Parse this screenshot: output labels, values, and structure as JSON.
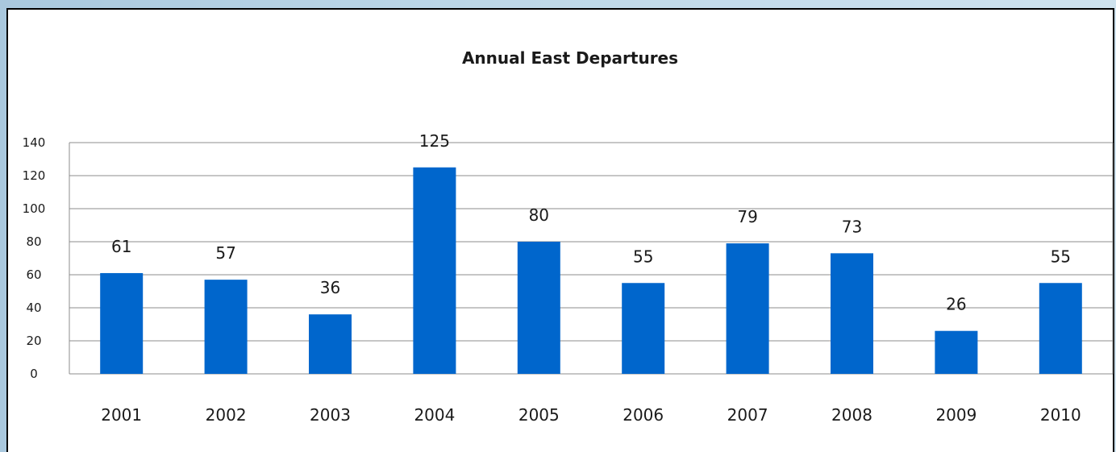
{
  "chart_data": {
    "type": "bar",
    "title": "Annual East Departures",
    "xlabel": "",
    "ylabel": "",
    "categories": [
      "2001",
      "2002",
      "2003",
      "2004",
      "2005",
      "2006",
      "2007",
      "2008",
      "2009",
      "2010"
    ],
    "values": [
      61,
      57,
      36,
      125,
      80,
      55,
      79,
      73,
      26,
      55
    ],
    "ylim": [
      0,
      140
    ],
    "yticks": [
      0,
      20,
      40,
      60,
      80,
      100,
      120,
      140
    ],
    "grid": true,
    "legend": "none",
    "data_labels": true,
    "bar_color": "#0066cc"
  }
}
